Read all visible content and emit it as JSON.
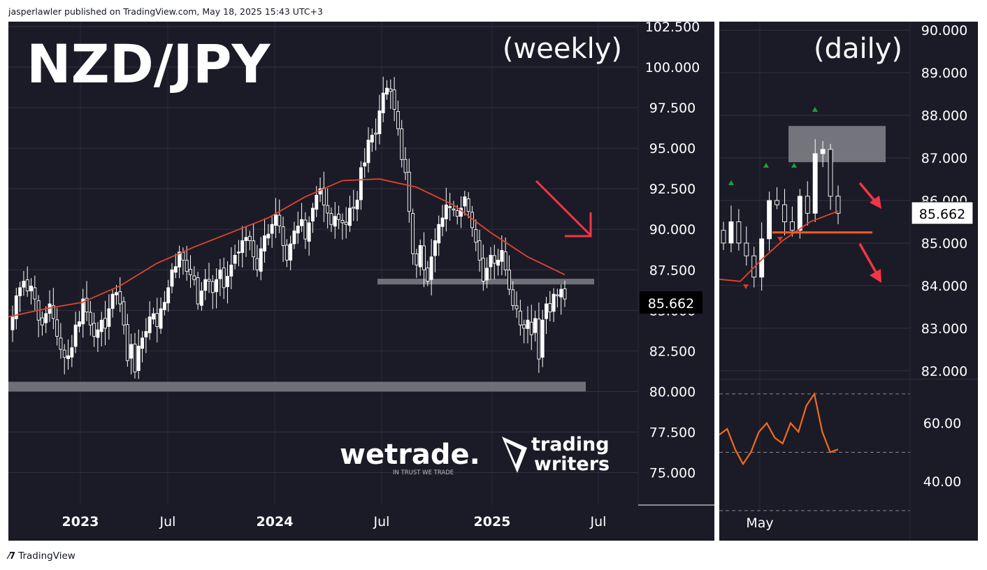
{
  "header": {
    "published_by": "jasperlawler published on TradingView.com, May 18, 2025 15:43 UTC+3"
  },
  "footer": {
    "logo_icon": "tradingview-logo-icon",
    "brand": "TradingView"
  },
  "colors": {
    "background": "#1b1b27",
    "candle": "#ffffff",
    "ma": "#e0442e",
    "arrow": "#f23645",
    "support": "#7e7e86",
    "orange_line": "#ff5a1f",
    "rsi": "#f26b1f",
    "signal_up": "#1e9e3c",
    "signal_down": "#e0342a"
  },
  "chart_data": [
    {
      "type": "candlestick",
      "title": "NZD/JPY",
      "subtitle": "(weekly)",
      "x_ticks": [
        "2023",
        "Jul",
        "2024",
        "Jul",
        "2025",
        "Jul"
      ],
      "y_ticks": [
        "102.500",
        "100.000",
        "97.500",
        "95.000",
        "92.500",
        "90.000",
        "87.500",
        "85.000",
        "82.500",
        "80.000",
        "77.500",
        "75.000"
      ],
      "ylim": [
        73.0,
        102.8
      ],
      "last_price": "85.662",
      "series": [
        {
          "name": "close",
          "values": [
            84.6,
            85.9,
            86.4,
            86.8,
            86.2,
            86.5,
            85.7,
            84.4,
            84.1,
            84.8,
            85.4,
            84.5,
            83.4,
            82.6,
            82.1,
            82.2,
            82.7,
            84.1,
            84.3,
            85.7,
            84.9,
            84.1,
            83.4,
            83.8,
            84.4,
            83.9,
            85.1,
            86.0,
            86.1,
            85.4,
            84.1,
            81.9,
            82.9,
            81.2,
            82.8,
            83.3,
            83.7,
            84.6,
            84.8,
            84.0,
            85.1,
            85.5,
            86.4,
            87.5,
            87.7,
            88.6,
            88.1,
            87.4,
            87.2,
            86.9,
            85.4,
            86.2,
            86.9,
            86.8,
            86.1,
            86.9,
            87.5,
            86.4,
            87.1,
            87.8,
            88.4,
            88.6,
            89.3,
            89.5,
            89.3,
            88.3,
            87.5,
            88.8,
            89.6,
            89.7,
            90.3,
            90.9,
            90.2,
            89.0,
            88.1,
            89.1,
            89.9,
            90.2,
            90.6,
            89.4,
            90.4,
            91.3,
            92.1,
            92.5,
            91.5,
            91.0,
            90.3,
            90.8,
            90.6,
            90.4,
            90.3,
            91.3,
            91.3,
            91.8,
            93.8,
            94.1,
            95.5,
            95.8,
            95.9,
            97.3,
            98.4,
            98.7,
            98.5,
            97.4,
            96.2,
            94.3,
            93.5,
            91.1,
            88.5,
            87.8,
            89.0,
            87.5,
            86.8,
            88.3,
            89.3,
            90.3,
            90.7,
            91.5,
            91.4,
            91.2,
            90.8,
            91.3,
            92.0,
            91.1,
            90.1,
            89.2,
            88.1,
            86.8,
            87.6,
            88.4,
            87.9,
            88.1,
            88.7,
            87.5,
            86.3,
            85.3,
            85.1,
            84.1,
            83.9,
            84.4,
            83.5,
            84.5,
            82.0,
            84.4,
            85.4,
            84.9,
            86.0,
            85.9,
            86.3,
            85.7
          ]
        },
        {
          "name": "moving-average",
          "values": [
            84.6,
            85.1,
            85.5,
            86.5,
            87.9,
            88.9,
            89.8,
            90.7,
            92.0,
            93.0,
            93.1,
            92.6,
            91.5,
            89.8,
            88.3,
            87.2
          ]
        }
      ],
      "support_zones": [
        {
          "from": 80.0,
          "to": 80.6
        },
        {
          "from": 86.6,
          "to": 86.95
        }
      ]
    },
    {
      "type": "candlestick",
      "subtitle": "(daily)",
      "x_ticks": [
        "May"
      ],
      "y_ticks": [
        "90.000",
        "89.000",
        "88.000",
        "87.000",
        "86.000",
        "85.000",
        "84.000",
        "83.000",
        "82.000"
      ],
      "ylim": [
        81.8,
        90.2
      ],
      "last_price": "85.662",
      "series": [
        {
          "name": "close",
          "values": [
            85.0,
            85.5,
            85.0,
            84.7,
            84.2,
            85.1,
            86.0,
            85.9,
            85.5,
            85.3,
            86.1,
            85.7,
            87.1,
            87.2,
            86.1,
            85.7
          ]
        },
        {
          "name": "moving-average",
          "values": [
            84.15,
            84.1,
            84.6,
            85.05,
            85.5,
            85.75
          ]
        }
      ],
      "supply_zone": {
        "from": 86.9,
        "to": 87.75
      },
      "support_line": 85.25,
      "indicator": {
        "y_ticks": [
          "60.00",
          "40.00"
        ],
        "ylim": [
          30,
          75
        ],
        "levels": [
          70,
          50,
          30
        ],
        "values": [
          56,
          58,
          51,
          46,
          50,
          57,
          60,
          55,
          53,
          60,
          57,
          66,
          70,
          57,
          50,
          51
        ]
      }
    }
  ]
}
